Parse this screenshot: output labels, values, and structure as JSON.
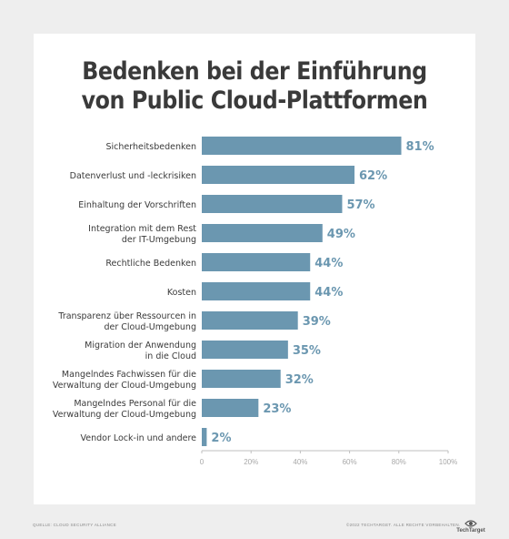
{
  "title_line1": "Bedenken bei der Einführung",
  "title_line2": "von Public Cloud-Plattformen",
  "source": "QUELLE: CLOUD SECURITY ALLIANCE",
  "copyright": "©2022 TECHTARGET. ALLE RECHTE VORBEHALTEN.",
  "brand": "TechTarget",
  "colors": {
    "bar": "#6b97b0",
    "value_label": "#6b97b0",
    "category_text": "#3a3a3a",
    "tick_text": "#a8a8a8",
    "axis": "#bfbfbf"
  },
  "chart_data": {
    "type": "bar",
    "orientation": "horizontal",
    "categories": [
      [
        "Sicherheitsbedenken"
      ],
      [
        "Datenverlust und -leckrisiken"
      ],
      [
        "Einhaltung der Vorschriften"
      ],
      [
        "Integration mit dem Rest",
        "der IT-Umgebung"
      ],
      [
        "Rechtliche Bedenken"
      ],
      [
        "Kosten"
      ],
      [
        "Transparenz über Ressourcen in",
        "der Cloud-Umgebung"
      ],
      [
        "Migration der Anwendung",
        "in die Cloud"
      ],
      [
        "Mangelndes Fachwissen für die",
        "Verwaltung der Cloud-Umgebung"
      ],
      [
        "Mangelndes Personal für die",
        "Verwaltung der Cloud-Umgebung"
      ],
      [
        "Vendor Lock-in und andere"
      ]
    ],
    "values": [
      81,
      62,
      57,
      49,
      44,
      44,
      39,
      35,
      32,
      23,
      2
    ],
    "value_labels": [
      "81%",
      "62%",
      "57%",
      "49%",
      "44%",
      "44%",
      "39%",
      "35%",
      "32%",
      "23%",
      "2%"
    ],
    "xlim": [
      0,
      100
    ],
    "xticks": [
      0,
      20,
      40,
      60,
      80,
      100
    ],
    "xtick_labels": [
      "0",
      "20%",
      "40%",
      "60%",
      "80%",
      "100%"
    ],
    "grid": false,
    "legend": "none"
  }
}
